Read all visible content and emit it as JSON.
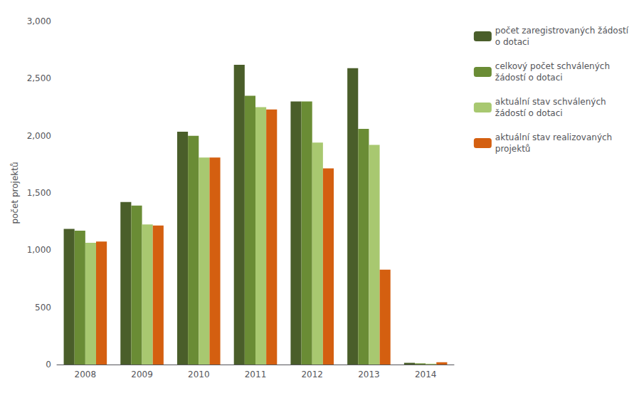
{
  "chart_data": {
    "type": "bar",
    "categories": [
      "2008",
      "2009",
      "2010",
      "2011",
      "2012",
      "2013",
      "2014"
    ],
    "series": [
      {
        "name": "počet zaregistrovaných žádostí\no dotaci",
        "color": "#4a5e2a",
        "values": [
          1185,
          1420,
          2035,
          2620,
          2300,
          2590,
          15
        ]
      },
      {
        "name": "celkový počet schválených\nžádostí o dotaci",
        "color": "#6a8c35",
        "values": [
          1170,
          1390,
          2000,
          2350,
          2300,
          2060,
          10
        ]
      },
      {
        "name": "aktuální stav schválených\nžádostí o dotaci",
        "color": "#a8c870",
        "values": [
          1065,
          1225,
          1810,
          2250,
          1940,
          1920,
          7
        ]
      },
      {
        "name": "aktuální stav realizovaných\nprojektů",
        "color": "#d45f10",
        "values": [
          1075,
          1215,
          1810,
          2230,
          1715,
          830,
          20
        ]
      }
    ],
    "ylabel": "počet projektů",
    "ylim": [
      0,
      3000
    ],
    "yticks": [
      0,
      500,
      1000,
      1500,
      2000,
      2500,
      3000
    ],
    "grid": false,
    "legend": "upper right"
  }
}
